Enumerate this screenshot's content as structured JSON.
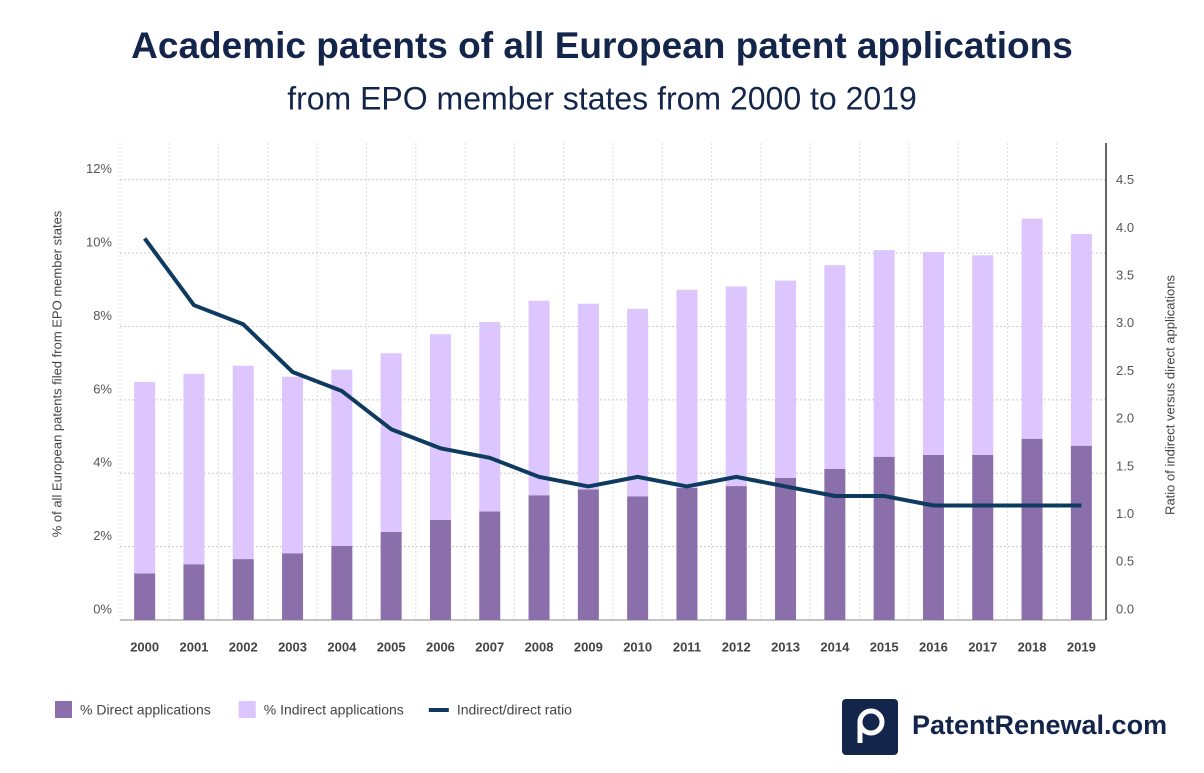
{
  "chart_data": {
    "type": "bar",
    "title": "Academic patents of all European patent applications",
    "subtitle": "from EPO member states from 2000 to 2019",
    "y_label": "% of all European patents filed from EPO member states",
    "y2_label": "Ratio of indirect versus direct applications",
    "categories": [
      "2000",
      "2001",
      "2002",
      "2003",
      "2004",
      "2005",
      "2006",
      "2007",
      "2008",
      "2009",
      "2010",
      "2011",
      "2012",
      "2013",
      "2014",
      "2015",
      "2016",
      "2017",
      "2018",
      "2019"
    ],
    "stacked": true,
    "grid": true,
    "legend": "bottom-left",
    "series": [
      {
        "name": "% Direct applications",
        "type": "bar",
        "color": "#8a6fab",
        "values": [
          1.27,
          1.52,
          1.66,
          1.82,
          2.02,
          2.4,
          2.73,
          2.96,
          3.4,
          3.56,
          3.37,
          3.6,
          3.65,
          3.87,
          4.12,
          4.45,
          4.5,
          4.5,
          4.94,
          4.75
        ]
      },
      {
        "name": "% Indirect applications",
        "type": "bar",
        "color": "#dcc6fd",
        "values": [
          5.22,
          5.19,
          5.27,
          4.81,
          4.8,
          4.87,
          5.06,
          5.16,
          5.3,
          5.06,
          5.11,
          5.4,
          5.44,
          5.38,
          5.55,
          5.63,
          5.53,
          5.44,
          6.0,
          5.77
        ]
      },
      {
        "name": "Indirect/direct ratio",
        "type": "line",
        "axis": "y2",
        "color": "#0f3a5f",
        "values": [
          4.0,
          3.3,
          3.1,
          2.6,
          2.4,
          2.0,
          1.8,
          1.7,
          1.5,
          1.4,
          1.5,
          1.4,
          1.5,
          1.4,
          1.3,
          1.3,
          1.2,
          1.2,
          1.2,
          1.2
        ]
      }
    ],
    "ylim": [
      0,
      13
    ],
    "yticks": [
      {
        "value": 0,
        "label": "0%"
      },
      {
        "value": 2,
        "label": "2%"
      },
      {
        "value": 4,
        "label": "4%"
      },
      {
        "value": 6,
        "label": "6%"
      },
      {
        "value": 8,
        "label": "8%"
      },
      {
        "value": 10,
        "label": "10%"
      },
      {
        "value": 12,
        "label": "12%"
      }
    ],
    "y2lim": [
      0,
      5
    ],
    "y2ticks": [
      {
        "value": 0,
        "label": "0.0"
      },
      0.5,
      {
        "value": 1,
        "label": "1.0"
      },
      1.5,
      {
        "value": 2,
        "label": "2.0"
      },
      2.5,
      {
        "value": 3,
        "label": "3.0"
      },
      3.5,
      {
        "value": 4,
        "label": "4.0"
      },
      4.5
    ],
    "brand": "PatentRenewal.com"
  }
}
